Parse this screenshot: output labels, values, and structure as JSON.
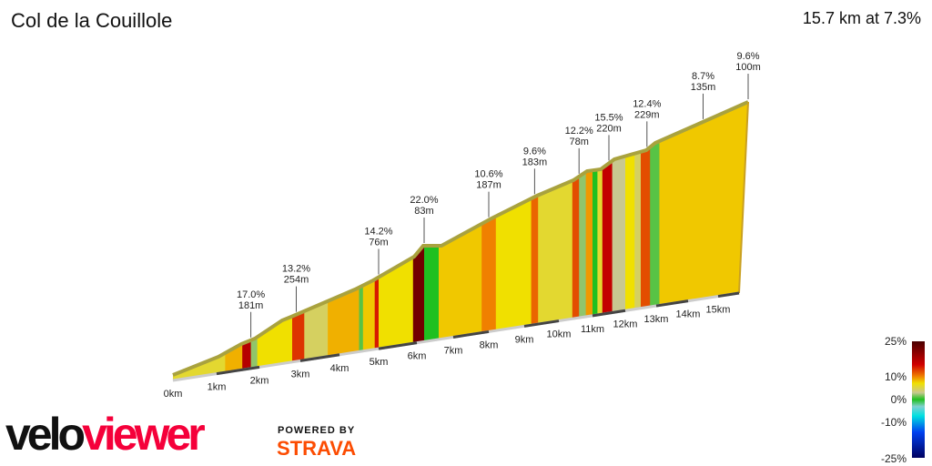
{
  "title": "Col de la Couillole",
  "summary": "15.7 km at 7.3%",
  "logo": {
    "brand": "veloviewer",
    "powered_by": "POWERED BY",
    "partner": "STRAVA"
  },
  "chart_data": {
    "type": "area",
    "xlabel": "",
    "ylabel": "",
    "x_ticks": [
      "0km",
      "1km",
      "2km",
      "3km",
      "4km",
      "5km",
      "6km",
      "7km",
      "8km",
      "9km",
      "10km",
      "11km",
      "12km",
      "13km",
      "14km",
      "15km"
    ],
    "annotations": [
      {
        "km": 1.8,
        "grade": "17.0%",
        "length": "181m"
      },
      {
        "km": 2.9,
        "grade": "13.2%",
        "length": "254m"
      },
      {
        "km": 5.0,
        "grade": "14.2%",
        "length": "76m"
      },
      {
        "km": 6.2,
        "grade": "22.0%",
        "length": "83m"
      },
      {
        "km": 8.0,
        "grade": "10.6%",
        "length": "187m"
      },
      {
        "km": 9.3,
        "grade": "9.6%",
        "length": "183m"
      },
      {
        "km": 10.6,
        "grade": "12.2%",
        "length": "78m"
      },
      {
        "km": 11.5,
        "grade": "15.5%",
        "length": "220m"
      },
      {
        "km": 12.7,
        "grade": "12.4%",
        "length": "229m"
      },
      {
        "km": 14.5,
        "grade": "8.7%",
        "length": "135m"
      },
      {
        "km": 15.7,
        "grade": "9.6%",
        "length": "100m"
      }
    ],
    "segments": [
      [
        0,
        1.2,
        5
      ],
      [
        1.2,
        1.6,
        8
      ],
      [
        1.6,
        1.8,
        17
      ],
      [
        1.8,
        1.95,
        2
      ],
      [
        1.95,
        2.8,
        6
      ],
      [
        2.8,
        3.1,
        13
      ],
      [
        3.1,
        3.7,
        4
      ],
      [
        3.7,
        4.5,
        8
      ],
      [
        4.5,
        4.6,
        1
      ],
      [
        4.6,
        4.9,
        7
      ],
      [
        4.9,
        5.0,
        14
      ],
      [
        5.0,
        5.9,
        6
      ],
      [
        5.9,
        6.2,
        22
      ],
      [
        6.2,
        6.6,
        0
      ],
      [
        6.6,
        7.8,
        7
      ],
      [
        7.8,
        8.2,
        10
      ],
      [
        8.2,
        9.2,
        6
      ],
      [
        9.2,
        9.4,
        11
      ],
      [
        9.4,
        10.4,
        5
      ],
      [
        10.4,
        10.6,
        12
      ],
      [
        10.6,
        10.8,
        2
      ],
      [
        10.8,
        11.0,
        9
      ],
      [
        11.0,
        11.15,
        0
      ],
      [
        11.15,
        11.3,
        5
      ],
      [
        11.3,
        11.6,
        16
      ],
      [
        11.6,
        12.0,
        3
      ],
      [
        12.0,
        12.3,
        6
      ],
      [
        12.3,
        12.5,
        4
      ],
      [
        12.5,
        12.8,
        12
      ],
      [
        12.8,
        13.1,
        1
      ],
      [
        13.1,
        14.0,
        7
      ],
      [
        14.0,
        15.7,
        7
      ]
    ],
    "legend": {
      "labels": [
        "25%",
        "10%",
        "0%",
        "-10%",
        "-25%"
      ],
      "range": [
        -25,
        25
      ]
    }
  }
}
